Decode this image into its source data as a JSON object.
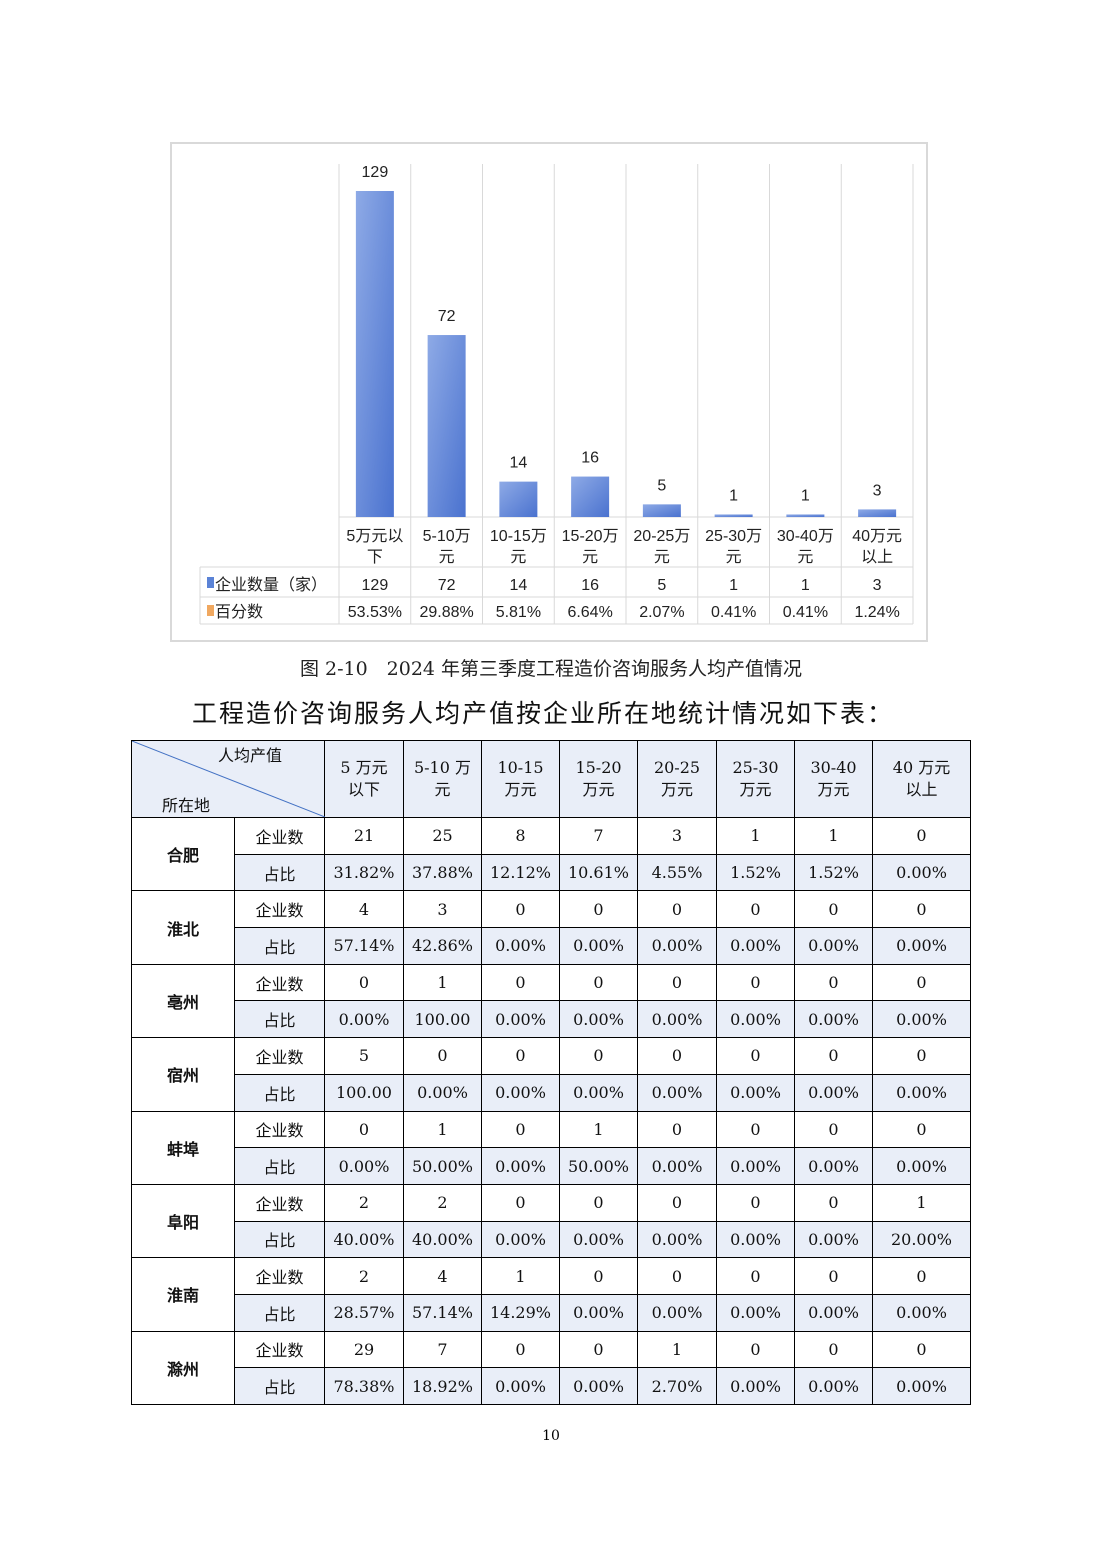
{
  "chart_data": {
    "type": "bar",
    "categories": [
      "5万元以下",
      "5-10万元",
      "10-15万元",
      "15-20万元",
      "20-25万元",
      "25-30万元",
      "30-40万元",
      "40万元以上"
    ],
    "category_lines": [
      [
        "5万元以",
        "下"
      ],
      [
        "5-10万",
        "元"
      ],
      [
        "10-15万",
        "元"
      ],
      [
        "15-20万",
        "元"
      ],
      [
        "20-25万",
        "元"
      ],
      [
        "25-30万",
        "元"
      ],
      [
        "30-40万",
        "元"
      ],
      [
        "40万元",
        "以上"
      ]
    ],
    "series": [
      {
        "name": "企业数量（家）",
        "values": [
          129,
          72,
          14,
          16,
          5,
          1,
          1,
          3
        ],
        "color": "#5b83d6"
      },
      {
        "name": "百分数",
        "values": [
          "53.53%",
          "29.88%",
          "5.81%",
          "6.64%",
          "2.07%",
          "0.41%",
          "0.41%",
          "1.24%"
        ],
        "color": "#f0a860"
      }
    ],
    "data_table": true,
    "grid": "vertical",
    "ylim": [
      0,
      129
    ]
  },
  "caption": "图 2-10　2024 年第三季度工程造价咨询服务人均产值情况",
  "intro": "工程造价咨询服务人均产值按企业所在地统计情况如下表：",
  "table": {
    "corner_top": "人均产值",
    "corner_bottom": "所在地",
    "columns": [
      [
        "5 万元",
        "以下"
      ],
      [
        "5-10 万",
        "元"
      ],
      [
        "10-15",
        "万元"
      ],
      [
        "15-20",
        "万元"
      ],
      [
        "20-25",
        "万元"
      ],
      [
        "25-30",
        "万元"
      ],
      [
        "30-40",
        "万元"
      ],
      [
        "40 万元",
        "以上"
      ]
    ],
    "count_label": "企业数",
    "pct_label": "占比",
    "rows": [
      {
        "region": "合肥",
        "counts": [
          "21",
          "25",
          "8",
          "7",
          "3",
          "1",
          "1",
          "0"
        ],
        "pcts": [
          "31.82%",
          "37.88%",
          "12.12%",
          "10.61%",
          "4.55%",
          "1.52%",
          "1.52%",
          "0.00%"
        ]
      },
      {
        "region": "淮北",
        "counts": [
          "4",
          "3",
          "0",
          "0",
          "0",
          "0",
          "0",
          "0"
        ],
        "pcts": [
          "57.14%",
          "42.86%",
          "0.00%",
          "0.00%",
          "0.00%",
          "0.00%",
          "0.00%",
          "0.00%"
        ]
      },
      {
        "region": "亳州",
        "counts": [
          "0",
          "1",
          "0",
          "0",
          "0",
          "0",
          "0",
          "0"
        ],
        "pcts": [
          "0.00%",
          "100.00",
          "0.00%",
          "0.00%",
          "0.00%",
          "0.00%",
          "0.00%",
          "0.00%"
        ]
      },
      {
        "region": "宿州",
        "counts": [
          "5",
          "0",
          "0",
          "0",
          "0",
          "0",
          "0",
          "0"
        ],
        "pcts": [
          "100.00",
          "0.00%",
          "0.00%",
          "0.00%",
          "0.00%",
          "0.00%",
          "0.00%",
          "0.00%"
        ]
      },
      {
        "region": "蚌埠",
        "counts": [
          "0",
          "1",
          "0",
          "1",
          "0",
          "0",
          "0",
          "0"
        ],
        "pcts": [
          "0.00%",
          "50.00%",
          "0.00%",
          "50.00%",
          "0.00%",
          "0.00%",
          "0.00%",
          "0.00%"
        ]
      },
      {
        "region": "阜阳",
        "counts": [
          "2",
          "2",
          "0",
          "0",
          "0",
          "0",
          "0",
          "1"
        ],
        "pcts": [
          "40.00%",
          "40.00%",
          "0.00%",
          "0.00%",
          "0.00%",
          "0.00%",
          "0.00%",
          "20.00%"
        ]
      },
      {
        "region": "淮南",
        "counts": [
          "2",
          "4",
          "1",
          "0",
          "0",
          "0",
          "0",
          "0"
        ],
        "pcts": [
          "28.57%",
          "57.14%",
          "14.29%",
          "0.00%",
          "0.00%",
          "0.00%",
          "0.00%",
          "0.00%"
        ]
      },
      {
        "region": "滁州",
        "counts": [
          "29",
          "7",
          "0",
          "0",
          "1",
          "0",
          "0",
          "0"
        ],
        "pcts": [
          "78.38%",
          "18.92%",
          "0.00%",
          "0.00%",
          "2.70%",
          "0.00%",
          "0.00%",
          "0.00%"
        ]
      }
    ]
  },
  "page_number": "10"
}
